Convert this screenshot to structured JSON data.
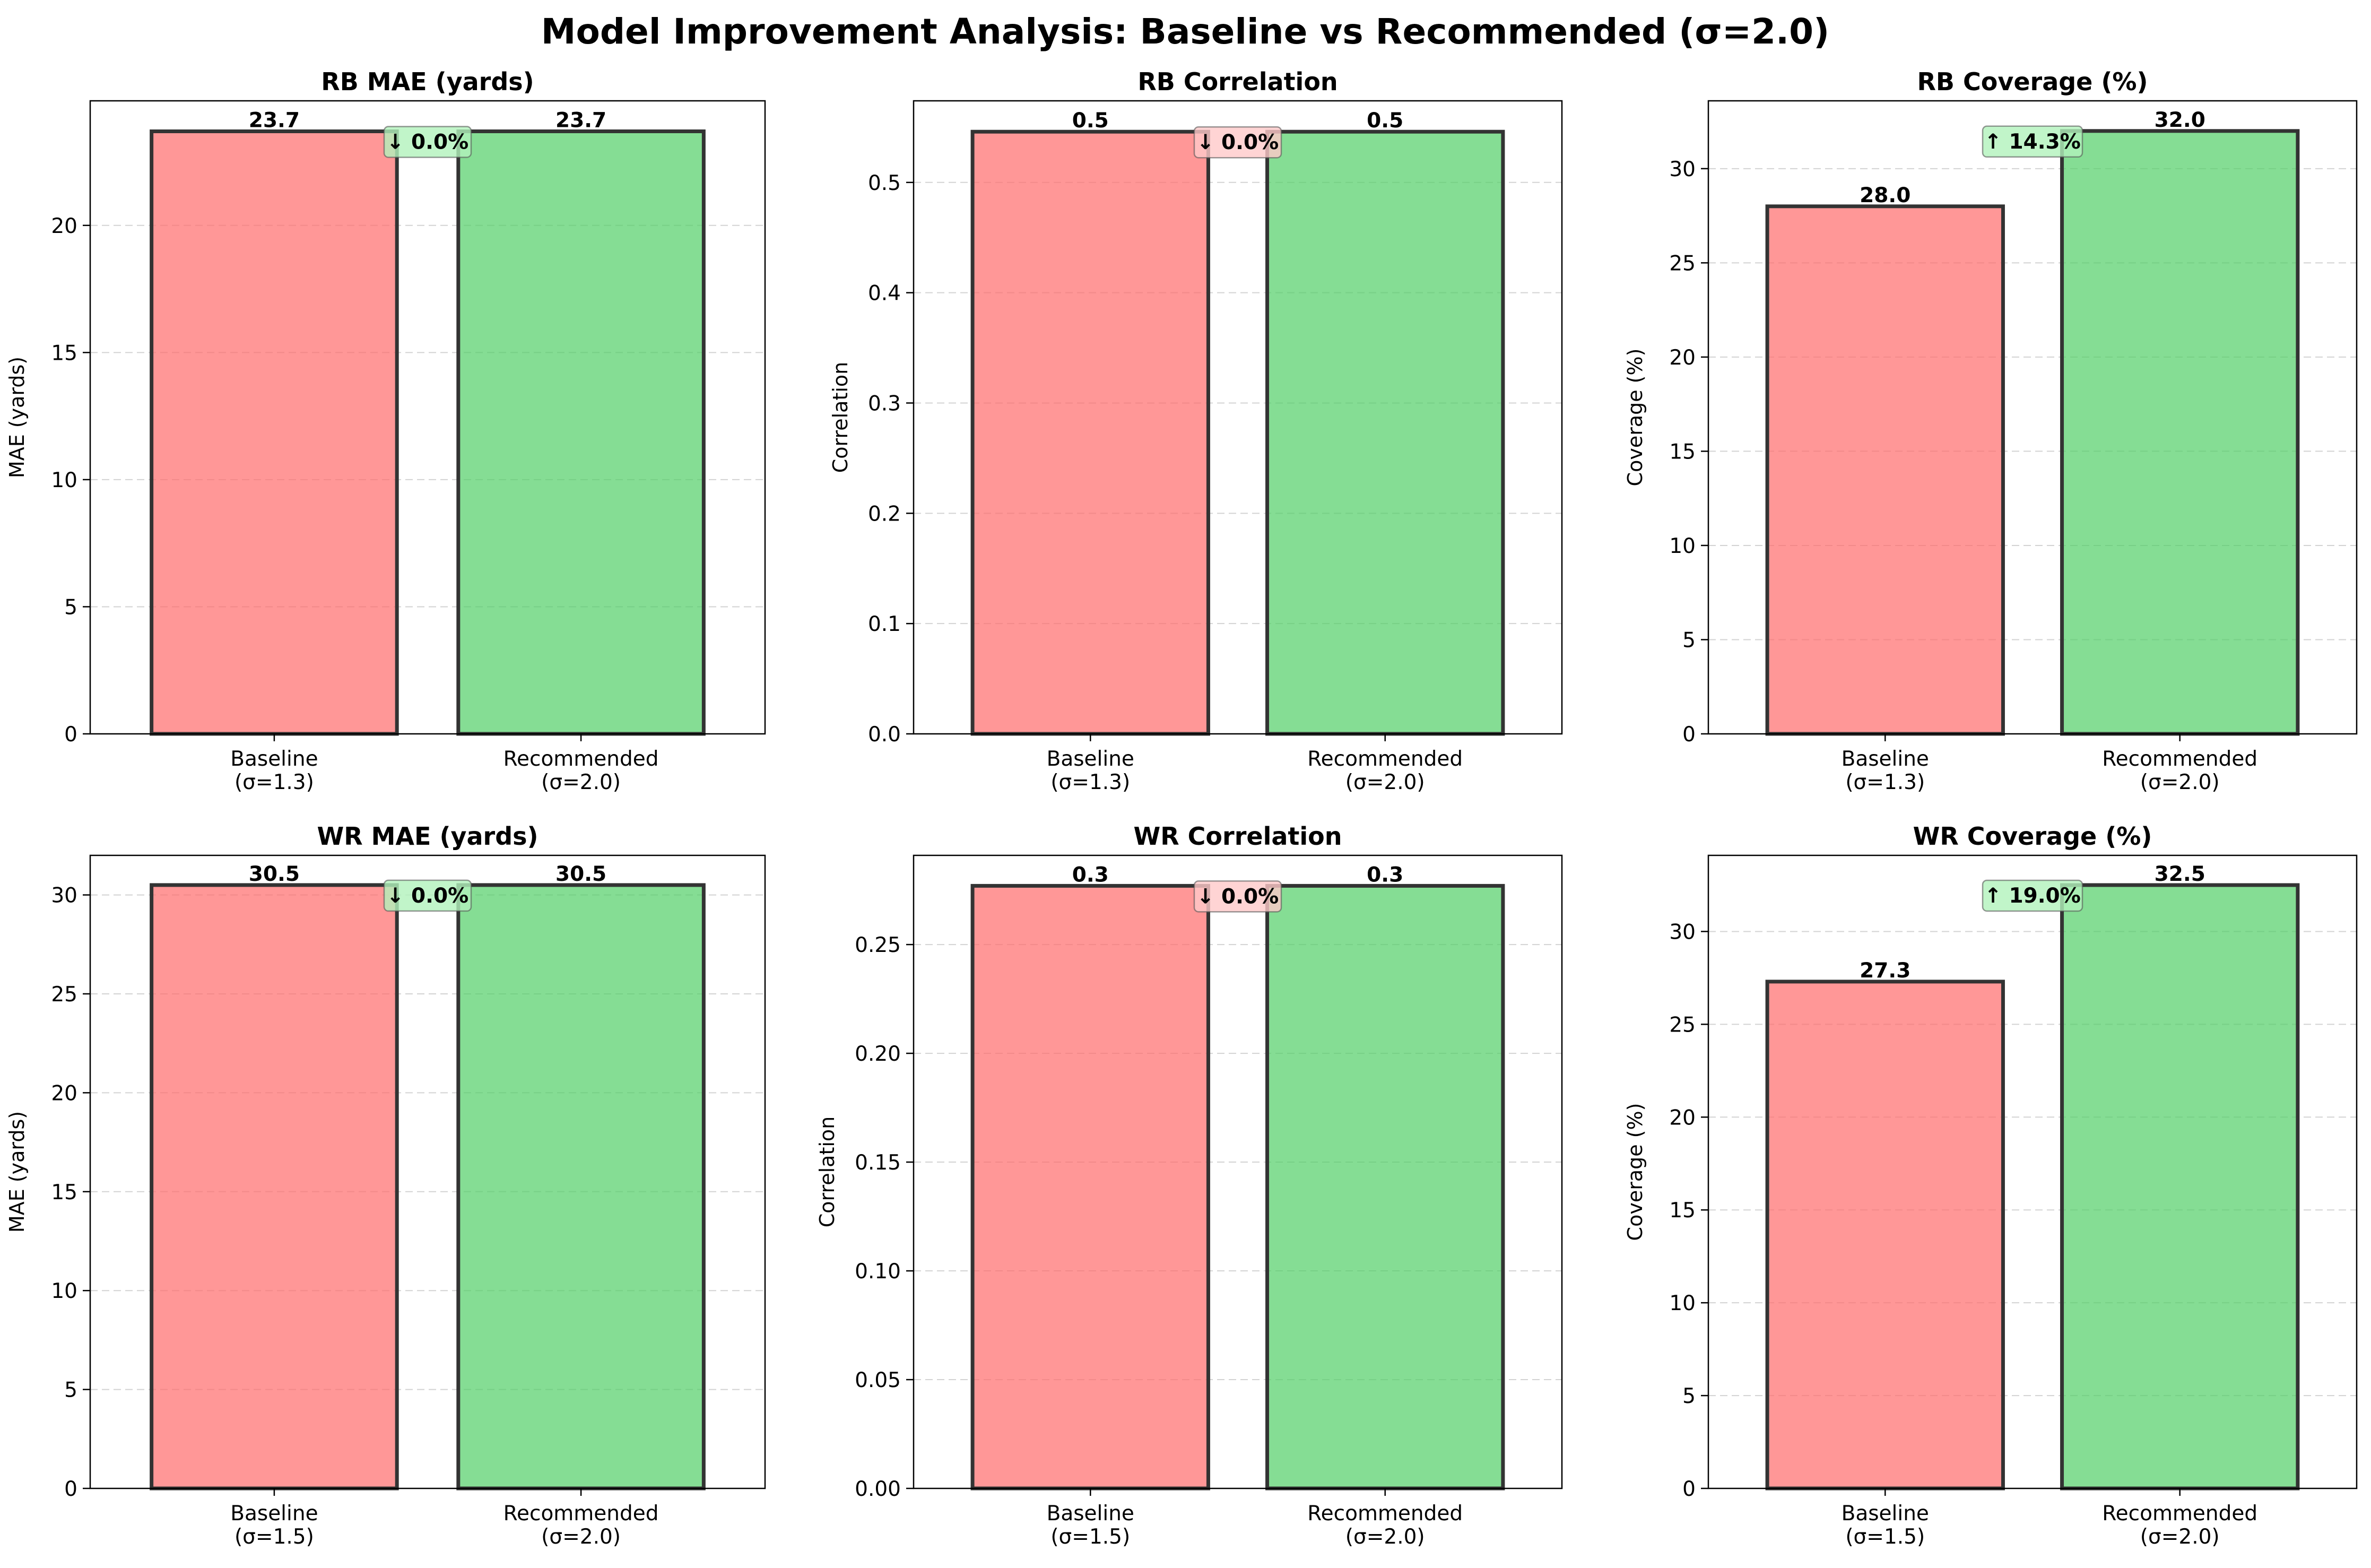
{
  "title": "Model Improvement Analysis: Baseline vs Recommended (σ=2.0)",
  "colors": {
    "baseline": "#ff6b6b",
    "recommended": "#51cf66",
    "edge": "#333333",
    "annotation_up": "#b2f2bb",
    "annotation_down_good": "#b2f2bb",
    "annotation_down_bad": "#ffc9c9"
  },
  "chart_data": [
    {
      "type": "bar",
      "title": "RB MAE (yards)",
      "ylabel": "MAE (yards)",
      "categories": [
        "Baseline",
        "Recommended"
      ],
      "category_sublabels": [
        "(σ=1.3)",
        "(σ=2.0)"
      ],
      "values": [
        23.7,
        23.7
      ],
      "value_labels": [
        "23.7",
        "23.7"
      ],
      "ylim": [
        0,
        24.9
      ],
      "yticks": [
        0,
        5,
        10,
        15,
        20
      ],
      "ytick_labels": [
        "0",
        "5",
        "10",
        "15",
        "20"
      ],
      "annotation": "↓ 0.0%",
      "annotation_tone": "good",
      "grid": "y-dashed"
    },
    {
      "type": "bar",
      "title": "RB Correlation",
      "ylabel": "Correlation",
      "categories": [
        "Baseline",
        "Recommended"
      ],
      "category_sublabels": [
        "(σ=1.3)",
        "(σ=2.0)"
      ],
      "values": [
        0.546,
        0.546
      ],
      "value_labels": [
        "0.5",
        "0.5"
      ],
      "ylim": [
        0,
        0.574
      ],
      "yticks": [
        0,
        0.1,
        0.2,
        0.3,
        0.4,
        0.5
      ],
      "ytick_labels": [
        "0.0",
        "0.1",
        "0.2",
        "0.3",
        "0.4",
        "0.5"
      ],
      "annotation": "↓ 0.0%",
      "annotation_tone": "bad",
      "grid": "y-dashed"
    },
    {
      "type": "bar",
      "title": "RB Coverage (%)",
      "ylabel": "Coverage (%)",
      "categories": [
        "Baseline",
        "Recommended"
      ],
      "category_sublabels": [
        "(σ=1.3)",
        "(σ=2.0)"
      ],
      "values": [
        28.0,
        32.0
      ],
      "value_labels": [
        "28.0",
        "32.0"
      ],
      "ylim": [
        0,
        33.6
      ],
      "yticks": [
        0,
        5,
        10,
        15,
        20,
        25,
        30
      ],
      "ytick_labels": [
        "0",
        "5",
        "10",
        "15",
        "20",
        "25",
        "30"
      ],
      "annotation": "↑ 14.3%",
      "annotation_tone": "good",
      "grid": "y-dashed"
    },
    {
      "type": "bar",
      "title": "WR MAE (yards)",
      "ylabel": "MAE (yards)",
      "categories": [
        "Baseline",
        "Recommended"
      ],
      "category_sublabels": [
        "(σ=1.5)",
        "(σ=2.0)"
      ],
      "values": [
        30.5,
        30.5
      ],
      "value_labels": [
        "30.5",
        "30.5"
      ],
      "ylim": [
        0,
        32.0
      ],
      "yticks": [
        0,
        5,
        10,
        15,
        20,
        25,
        30
      ],
      "ytick_labels": [
        "0",
        "5",
        "10",
        "15",
        "20",
        "25",
        "30"
      ],
      "annotation": "↓ 0.0%",
      "annotation_tone": "good",
      "grid": "y-dashed"
    },
    {
      "type": "bar",
      "title": "WR Correlation",
      "ylabel": "Correlation",
      "categories": [
        "Baseline",
        "Recommended"
      ],
      "category_sublabels": [
        "(σ=1.5)",
        "(σ=2.0)"
      ],
      "values": [
        0.277,
        0.277
      ],
      "value_labels": [
        "0.3",
        "0.3"
      ],
      "ylim": [
        0,
        0.291
      ],
      "yticks": [
        0,
        0.05,
        0.1,
        0.15,
        0.2,
        0.25
      ],
      "ytick_labels": [
        "0.00",
        "0.05",
        "0.10",
        "0.15",
        "0.20",
        "0.25"
      ],
      "annotation": "↓ 0.0%",
      "annotation_tone": "bad",
      "grid": "y-dashed"
    },
    {
      "type": "bar",
      "title": "WR Coverage (%)",
      "ylabel": "Coverage (%)",
      "categories": [
        "Baseline",
        "Recommended"
      ],
      "category_sublabels": [
        "(σ=1.5)",
        "(σ=2.0)"
      ],
      "values": [
        27.3,
        32.5
      ],
      "value_labels": [
        "27.3",
        "32.5"
      ],
      "ylim": [
        0,
        34.1
      ],
      "yticks": [
        0,
        5,
        10,
        15,
        20,
        25,
        30
      ],
      "ytick_labels": [
        "0",
        "5",
        "10",
        "15",
        "20",
        "25",
        "30"
      ],
      "annotation": "↑ 19.0%",
      "annotation_tone": "good",
      "grid": "y-dashed"
    }
  ]
}
